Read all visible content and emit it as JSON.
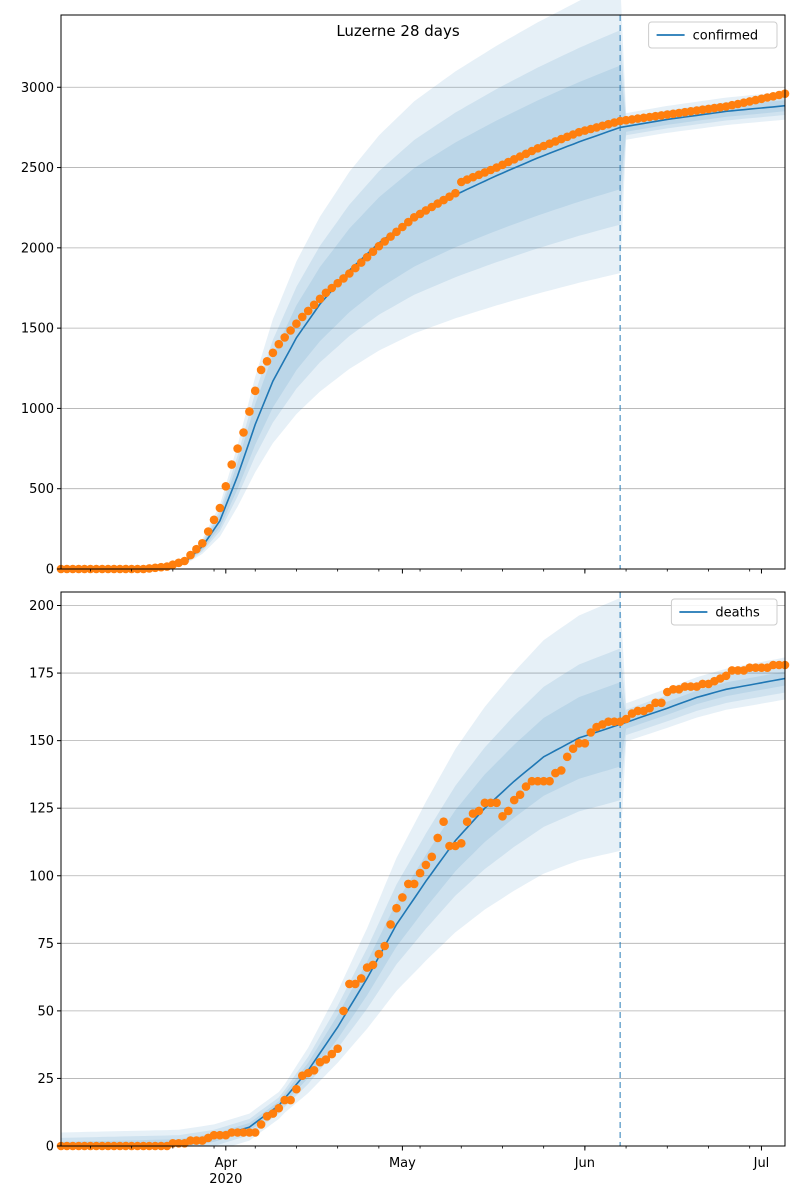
{
  "figure": {
    "title": "Luzerne 28 days"
  },
  "chart_data": [
    {
      "type": "line",
      "name": "top-panel",
      "x_start": "2020-03-04",
      "forecast_start": "2020-06-07",
      "x_end": "2020-07-05",
      "xlim": [
        "2020-03-04",
        "2020-07-05"
      ],
      "ylim": [
        0,
        3450
      ],
      "y_ticks": [
        0,
        500,
        1000,
        1500,
        2000,
        2500,
        3000
      ],
      "grid": "horizontal",
      "legend_position": "top-right",
      "series": [
        {
          "name": "confirmed",
          "kind": "model-mean-with-uncertainty-bands",
          "color": "#1f77b4",
          "anchors": [
            [
              "2020-03-04",
              0
            ],
            [
              "2020-03-20",
              0
            ],
            [
              "2020-03-25",
              40
            ],
            [
              "2020-03-28",
              140
            ],
            [
              "2020-03-31",
              300
            ],
            [
              "2020-04-03",
              580
            ],
            [
              "2020-04-06",
              900
            ],
            [
              "2020-04-09",
              1170
            ],
            [
              "2020-04-13",
              1440
            ],
            [
              "2020-04-17",
              1650
            ],
            [
              "2020-04-22",
              1860
            ],
            [
              "2020-04-27",
              2030
            ],
            [
              "2020-05-03",
              2190
            ],
            [
              "2020-05-10",
              2330
            ],
            [
              "2020-05-17",
              2450
            ],
            [
              "2020-05-24",
              2560
            ],
            [
              "2020-05-31",
              2660
            ],
            [
              "2020-06-07",
              2750
            ],
            [
              "2020-06-15",
              2800
            ],
            [
              "2020-06-25",
              2850
            ],
            [
              "2020-07-05",
              2885
            ]
          ],
          "band_ratios": [
            0.14,
            0.22,
            0.33
          ],
          "band_ratios_future": [
            0.012,
            0.02,
            0.03
          ]
        },
        {
          "kind": "observed-points",
          "color": "#ff7f0e",
          "anchors": [
            [
              "2020-03-04",
              0
            ],
            [
              "2020-03-18",
              0
            ],
            [
              "2020-03-22",
              15
            ],
            [
              "2020-03-25",
              50
            ],
            [
              "2020-03-28",
              160
            ],
            [
              "2020-03-31",
              380
            ],
            [
              "2020-04-02",
              650
            ],
            [
              "2020-04-04",
              850
            ],
            [
              "2020-04-05",
              980
            ],
            [
              "2020-04-07",
              1240
            ],
            [
              "2020-04-10",
              1400
            ],
            [
              "2020-04-14",
              1570
            ],
            [
              "2020-04-18",
              1720
            ],
            [
              "2020-04-22",
              1840
            ],
            [
              "2020-04-27",
              2010
            ],
            [
              "2020-05-03",
              2190
            ],
            [
              "2020-05-10",
              2340
            ],
            [
              "2020-05-11",
              2410
            ],
            [
              "2020-05-17",
              2500
            ],
            [
              "2020-05-24",
              2620
            ],
            [
              "2020-05-31",
              2720
            ],
            [
              "2020-06-07",
              2790
            ],
            [
              "2020-06-15",
              2830
            ],
            [
              "2020-06-25",
              2880
            ],
            [
              "2020-07-05",
              2960
            ]
          ]
        }
      ],
      "vline": "2020-06-07"
    },
    {
      "type": "line",
      "name": "bottom-panel",
      "x_start": "2020-03-04",
      "forecast_start": "2020-06-07",
      "x_end": "2020-07-05",
      "xlim": [
        "2020-03-04",
        "2020-07-05"
      ],
      "ylim": [
        0,
        205
      ],
      "y_ticks": [
        0,
        25,
        50,
        75,
        100,
        125,
        150,
        175,
        200
      ],
      "x_ticks": [
        {
          "date": "2020-04-01",
          "label": "Apr",
          "sublabel": "2020"
        },
        {
          "date": "2020-05-01",
          "label": "May"
        },
        {
          "date": "2020-06-01",
          "label": "Jun"
        },
        {
          "date": "2020-07-01",
          "label": "Jul"
        }
      ],
      "grid": "horizontal",
      "legend_position": "top-right",
      "series": [
        {
          "name": "deaths",
          "kind": "model-mean-with-uncertainty-bands",
          "color": "#1f77b4",
          "anchors": [
            [
              "2020-03-04",
              0
            ],
            [
              "2020-03-24",
              1
            ],
            [
              "2020-03-30",
              3
            ],
            [
              "2020-04-05",
              7
            ],
            [
              "2020-04-10",
              15
            ],
            [
              "2020-04-15",
              28
            ],
            [
              "2020-04-20",
              44
            ],
            [
              "2020-04-25",
              62
            ],
            [
              "2020-04-30",
              82
            ],
            [
              "2020-05-05",
              98
            ],
            [
              "2020-05-10",
              113
            ],
            [
              "2020-05-15",
              125
            ],
            [
              "2020-05-20",
              135
            ],
            [
              "2020-05-25",
              144
            ],
            [
              "2020-05-31",
              151
            ],
            [
              "2020-06-07",
              156
            ],
            [
              "2020-06-15",
              162
            ],
            [
              "2020-06-20",
              166
            ],
            [
              "2020-06-25",
              169
            ],
            [
              "2020-07-05",
              173
            ]
          ],
          "band_ratios": [
            0.1,
            0.18,
            0.3
          ],
          "band_ratios_future": [
            0.015,
            0.03,
            0.045
          ],
          "band_floor": [
            1.5,
            3,
            5
          ]
        },
        {
          "kind": "observed-points",
          "color": "#ff7f0e",
          "points": [
            [
              "2020-03-04",
              0
            ],
            [
              "2020-03-05",
              0
            ],
            [
              "2020-03-06",
              0
            ],
            [
              "2020-03-07",
              0
            ],
            [
              "2020-03-08",
              0
            ],
            [
              "2020-03-09",
              0
            ],
            [
              "2020-03-10",
              0
            ],
            [
              "2020-03-11",
              0
            ],
            [
              "2020-03-12",
              0
            ],
            [
              "2020-03-13",
              0
            ],
            [
              "2020-03-14",
              0
            ],
            [
              "2020-03-15",
              0
            ],
            [
              "2020-03-16",
              0
            ],
            [
              "2020-03-17",
              0
            ],
            [
              "2020-03-18",
              0
            ],
            [
              "2020-03-19",
              0
            ],
            [
              "2020-03-20",
              0
            ],
            [
              "2020-03-21",
              0
            ],
            [
              "2020-03-22",
              0
            ],
            [
              "2020-03-23",
              1
            ],
            [
              "2020-03-24",
              1
            ],
            [
              "2020-03-25",
              1
            ],
            [
              "2020-03-26",
              2
            ],
            [
              "2020-03-27",
              2
            ],
            [
              "2020-03-28",
              2
            ],
            [
              "2020-03-29",
              3
            ],
            [
              "2020-03-30",
              4
            ],
            [
              "2020-03-31",
              4
            ],
            [
              "2020-04-01",
              4
            ],
            [
              "2020-04-02",
              5
            ],
            [
              "2020-04-03",
              5
            ],
            [
              "2020-04-04",
              5
            ],
            [
              "2020-04-05",
              5
            ],
            [
              "2020-04-06",
              5
            ],
            [
              "2020-04-07",
              8
            ],
            [
              "2020-04-08",
              11
            ],
            [
              "2020-04-09",
              12
            ],
            [
              "2020-04-10",
              14
            ],
            [
              "2020-04-11",
              17
            ],
            [
              "2020-04-12",
              17
            ],
            [
              "2020-04-13",
              21
            ],
            [
              "2020-04-14",
              26
            ],
            [
              "2020-04-15",
              27
            ],
            [
              "2020-04-16",
              28
            ],
            [
              "2020-04-17",
              31
            ],
            [
              "2020-04-18",
              32
            ],
            [
              "2020-04-19",
              34
            ],
            [
              "2020-04-20",
              36
            ],
            [
              "2020-04-21",
              50
            ],
            [
              "2020-04-22",
              60
            ],
            [
              "2020-04-23",
              60
            ],
            [
              "2020-04-24",
              62
            ],
            [
              "2020-04-25",
              66
            ],
            [
              "2020-04-26",
              67
            ],
            [
              "2020-04-27",
              71
            ],
            [
              "2020-04-28",
              74
            ],
            [
              "2020-04-29",
              82
            ],
            [
              "2020-04-30",
              88
            ],
            [
              "2020-05-01",
              92
            ],
            [
              "2020-05-02",
              97
            ],
            [
              "2020-05-03",
              97
            ],
            [
              "2020-05-04",
              101
            ],
            [
              "2020-05-05",
              104
            ],
            [
              "2020-05-06",
              107
            ],
            [
              "2020-05-07",
              114
            ],
            [
              "2020-05-08",
              120
            ],
            [
              "2020-05-09",
              111
            ],
            [
              "2020-05-10",
              111
            ],
            [
              "2020-05-11",
              112
            ],
            [
              "2020-05-12",
              120
            ],
            [
              "2020-05-13",
              123
            ],
            [
              "2020-05-14",
              124
            ],
            [
              "2020-05-15",
              127
            ],
            [
              "2020-05-16",
              127
            ],
            [
              "2020-05-17",
              127
            ],
            [
              "2020-05-18",
              122
            ],
            [
              "2020-05-19",
              124
            ],
            [
              "2020-05-20",
              128
            ],
            [
              "2020-05-21",
              130
            ],
            [
              "2020-05-22",
              133
            ],
            [
              "2020-05-23",
              135
            ],
            [
              "2020-05-24",
              135
            ],
            [
              "2020-05-25",
              135
            ],
            [
              "2020-05-26",
              135
            ],
            [
              "2020-05-27",
              138
            ],
            [
              "2020-05-28",
              139
            ],
            [
              "2020-05-29",
              144
            ],
            [
              "2020-05-30",
              147
            ],
            [
              "2020-05-31",
              149
            ],
            [
              "2020-06-01",
              149
            ],
            [
              "2020-06-02",
              153
            ],
            [
              "2020-06-03",
              155
            ],
            [
              "2020-06-04",
              156
            ],
            [
              "2020-06-05",
              157
            ],
            [
              "2020-06-06",
              157
            ],
            [
              "2020-06-07",
              157
            ],
            [
              "2020-06-08",
              158
            ],
            [
              "2020-06-09",
              160
            ],
            [
              "2020-06-10",
              161
            ],
            [
              "2020-06-11",
              161
            ],
            [
              "2020-06-12",
              162
            ],
            [
              "2020-06-13",
              164
            ],
            [
              "2020-06-14",
              164
            ],
            [
              "2020-06-15",
              168
            ],
            [
              "2020-06-16",
              169
            ],
            [
              "2020-06-17",
              169
            ],
            [
              "2020-06-18",
              170
            ],
            [
              "2020-06-19",
              170
            ],
            [
              "2020-06-20",
              170
            ],
            [
              "2020-06-21",
              171
            ],
            [
              "2020-06-22",
              171
            ],
            [
              "2020-06-23",
              172
            ],
            [
              "2020-06-24",
              173
            ],
            [
              "2020-06-25",
              174
            ],
            [
              "2020-06-26",
              176
            ],
            [
              "2020-06-27",
              176
            ],
            [
              "2020-06-28",
              176
            ],
            [
              "2020-06-29",
              177
            ],
            [
              "2020-06-30",
              177
            ],
            [
              "2020-07-01",
              177
            ],
            [
              "2020-07-02",
              177
            ],
            [
              "2020-07-03",
              178
            ],
            [
              "2020-07-04",
              178
            ],
            [
              "2020-07-05",
              178
            ]
          ]
        }
      ],
      "vline": "2020-06-07"
    }
  ],
  "colors": {
    "model": "#1f77b4",
    "observed": "#ff7f0e",
    "band": "#c6dbef",
    "grid": "#b0b0b0"
  }
}
